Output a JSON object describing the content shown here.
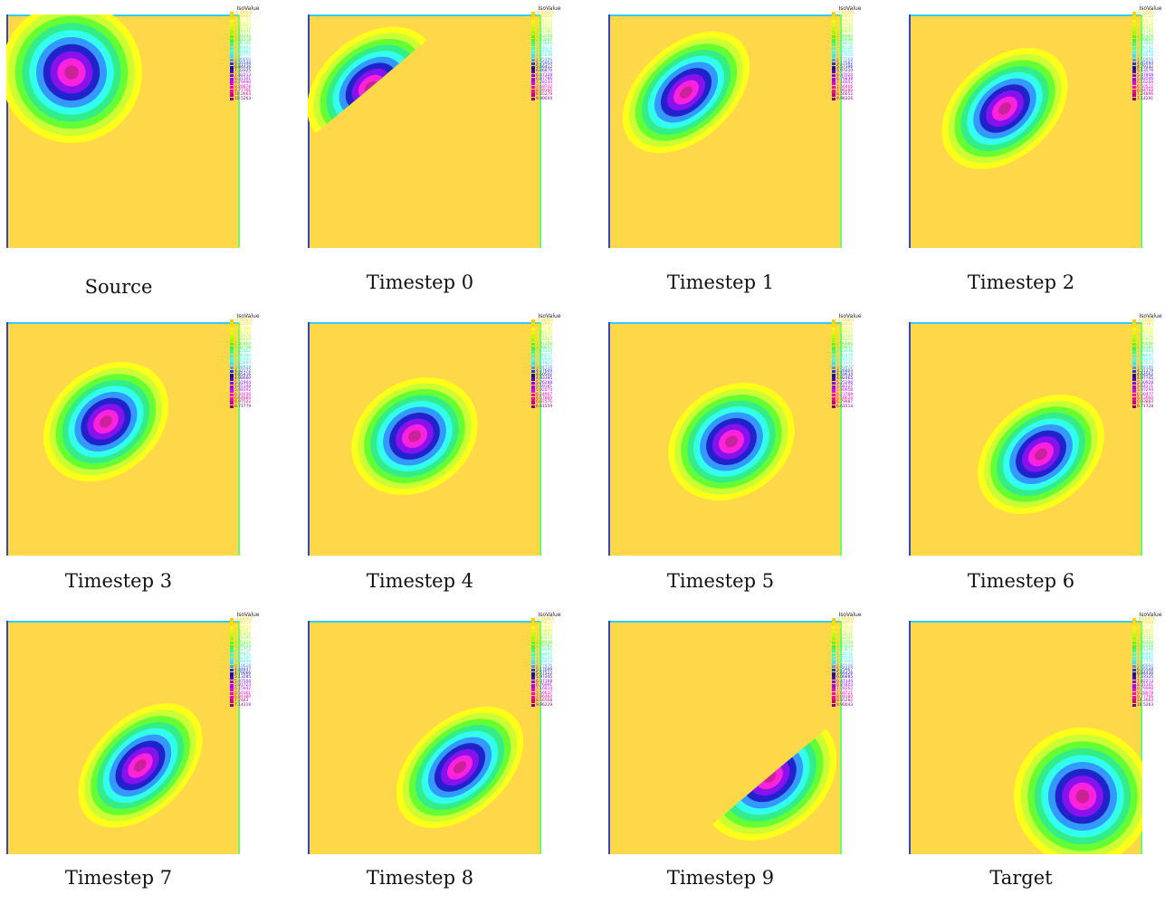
{
  "legend_title": "IsoValue",
  "colors": {
    "background_field": "#ffd84a",
    "ring_scale": [
      "#ffff1a",
      "#ccff33",
      "#66ff33",
      "#33ee88",
      "#33ffee",
      "#3399ff",
      "#2222cc",
      "#8811ee",
      "#ff22dd",
      "#cc2299"
    ],
    "legend_scale": [
      "#ffd000",
      "#ffe000",
      "#ffff00",
      "#ddff00",
      "#bbff00",
      "#99ff00",
      "#55ff00",
      "#33ff33",
      "#33ff99",
      "#33ffcc",
      "#33ffff",
      "#44ddff",
      "#4499ff",
      "#2233ee",
      "#1111aa",
      "#4400cc",
      "#8800ff",
      "#aa00ff",
      "#dd00ff",
      "#ff00cc",
      "#ff00aa",
      "#cc0088",
      "#880088"
    ]
  },
  "panels": [
    {
      "caption": "Source",
      "legend_values": [
        "-0.00001",
        "0.48888",
        "0.97776",
        "1.46665",
        "1.95553",
        "2.44441",
        "2.93330",
        "3.42218",
        "3.91106",
        "4.39995",
        "4.88883",
        "5.37771",
        "5.86660",
        "6.35548",
        "6.84436",
        "7.33325",
        "7.82213",
        "8.31101",
        "8.79990",
        "9.28878",
        "9.77766",
        "10.2663",
        "10.5263"
      ]
    },
    {
      "caption": "Timestep 0",
      "legend_values": [
        "-0.00001",
        "0.40458",
        "0.80916",
        "1.21374",
        "1.61832",
        "2.02290",
        "2.42748",
        "2.83206",
        "3.23664",
        "3.64122",
        "4.04580",
        "4.45038",
        "4.85496",
        "5.25954",
        "5.66412",
        "6.06870",
        "6.47328",
        "6.87786",
        "7.28244",
        "7.68702",
        "8.09160",
        "8.65279",
        "9.90044"
      ]
    },
    {
      "caption": "Timestep 1",
      "legend_values": [
        "-0.00001",
        "0.39814",
        "0.79628",
        "1.19442",
        "1.59256",
        "1.99070",
        "2.38884",
        "2.78698",
        "3.18512",
        "3.58326",
        "3.98140",
        "4.37954",
        "4.77768",
        "5.17582",
        "5.57396",
        "5.97210",
        "6.37024",
        "6.76838",
        "7.16652",
        "7.56466",
        "7.96280",
        "8.56652",
        "9.96326"
      ]
    },
    {
      "caption": "Timestep 2",
      "legend_values": [
        "-0.00001",
        "0.34238",
        "0.68476",
        "1.02714",
        "1.36952",
        "1.71190",
        "2.05428",
        "2.39666",
        "2.73904",
        "3.08142",
        "3.42380",
        "3.76618",
        "4.10856",
        "4.45094",
        "4.79332",
        "5.13570",
        "5.47808",
        "5.82046",
        "6.16284",
        "6.50522",
        "6.84760",
        "7.24896",
        "7.14291"
      ]
    },
    {
      "caption": "Timestep 3",
      "legend_values": [
        "-0.00001",
        "0.33244",
        "0.66488",
        "0.99732",
        "1.32976",
        "1.66220",
        "1.99464",
        "2.32708",
        "2.65952",
        "2.99196",
        "3.32440",
        "3.65684",
        "3.98928",
        "4.32172",
        "4.65416",
        "4.98660",
        "5.31904",
        "5.65148",
        "5.98392",
        "6.31636",
        "6.64880",
        "6.97522",
        "6.71779"
      ]
    },
    {
      "caption": "Timestep 4",
      "legend_values": [
        "-0.00001",
        "0.32893",
        "0.65786",
        "0.98679",
        "1.31572",
        "1.64465",
        "1.97358",
        "2.30251",
        "2.63144",
        "2.96037",
        "3.28930",
        "3.61823",
        "3.94716",
        "4.27609",
        "4.60502",
        "4.93395",
        "5.26288",
        "5.59181",
        "5.92074",
        "6.24967",
        "6.57860",
        "6.87571",
        "6.61559"
      ]
    },
    {
      "caption": "Timestep 5",
      "legend_values": [
        "-0.00001",
        "0.32831",
        "0.65662",
        "0.98493",
        "1.31324",
        "1.64155",
        "1.96986",
        "2.29817",
        "2.62648",
        "2.95479",
        "3.28310",
        "3.61141",
        "3.93972",
        "4.26803",
        "4.59634",
        "4.92465",
        "5.25296",
        "5.58127",
        "5.90958",
        "6.23789",
        "6.56620",
        "6.79987",
        "6.61514"
      ]
    },
    {
      "caption": "Timestep 6",
      "legend_values": [
        "-0.00001",
        "0.33183",
        "0.66366",
        "0.99549",
        "1.32732",
        "1.65915",
        "1.99098",
        "2.32281",
        "2.65464",
        "2.98647",
        "3.31830",
        "3.65013",
        "3.98196",
        "4.31379",
        "4.64562",
        "4.97745",
        "5.30928",
        "5.64111",
        "5.97294",
        "6.30477",
        "6.63660",
        "6.93883",
        "6.71728"
      ]
    },
    {
      "caption": "Timestep 7",
      "legend_values": [
        "-0.00001",
        "0.34219",
        "0.68438",
        "1.02657",
        "1.36876",
        "1.71095",
        "2.05314",
        "2.39533",
        "2.73752",
        "3.07971",
        "3.42190",
        "3.76409",
        "4.10628",
        "4.44847",
        "4.79066",
        "5.13285",
        "5.47504",
        "5.81723",
        "6.15942",
        "6.50161",
        "6.84380",
        "7.2483",
        "7.14219"
      ]
    },
    {
      "caption": "Timestep 8",
      "legend_values": [
        "-0.00001",
        "0.39823",
        "0.79646",
        "1.19469",
        "1.59292",
        "1.99115",
        "2.38938",
        "2.78761",
        "3.18584",
        "3.58407",
        "3.98230",
        "4.38053",
        "4.77876",
        "5.17699",
        "5.57522",
        "5.97345",
        "6.37168",
        "6.76991",
        "7.16814",
        "7.56637",
        "7.96460",
        "8.56568",
        "9.96229"
      ]
    },
    {
      "caption": "Timestep 9",
      "legend_values": [
        "-0.00001",
        "0.40459",
        "0.80918",
        "1.21377",
        "1.61836",
        "2.02295",
        "2.42754",
        "2.83213",
        "3.23672",
        "3.64131",
        "4.04590",
        "4.45049",
        "4.85508",
        "5.25967",
        "5.66426",
        "6.06885",
        "6.47344",
        "6.87803",
        "7.28262",
        "7.68721",
        "8.09180",
        "8.65282",
        "9.90043"
      ]
    },
    {
      "caption": "Target",
      "legend_values": [
        "-0.00001",
        "0.48888",
        "0.97776",
        "1.46665",
        "1.95553",
        "2.44441",
        "2.93330",
        "3.42218",
        "3.91106",
        "4.39995",
        "4.88883",
        "5.37771",
        "5.86660",
        "6.35548",
        "6.84436",
        "7.33325",
        "7.82213",
        "8.31101",
        "8.79990",
        "9.28878",
        "9.77766",
        "10.2663",
        "10.5263"
      ]
    }
  ]
}
